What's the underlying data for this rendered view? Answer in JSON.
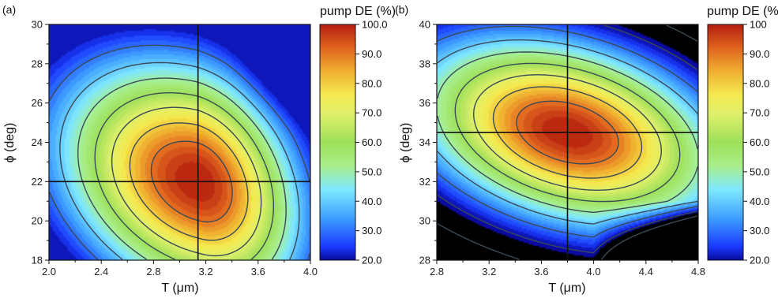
{
  "chart_data": [
    {
      "type": "heatmap",
      "panel_label": "(a)",
      "xlabel": "T (μm)",
      "ylabel": "ϕ (deg)",
      "xlim": [
        2.0,
        4.0
      ],
      "ylim": [
        18,
        30
      ],
      "xticks": [
        "2.0",
        "2.4",
        "2.8",
        "3.2",
        "3.6",
        "4.0"
      ],
      "yticks": [
        "18",
        "20",
        "22",
        "24",
        "26",
        "28",
        "30"
      ],
      "optimum": {
        "x": 3.14,
        "y": 22.0,
        "value": 100
      },
      "low_corner": {
        "x": 4.0,
        "y": 30,
        "value": 20
      },
      "colorbar": {
        "title": "pump DE (%)",
        "range": [
          20,
          100
        ],
        "tick_labels": [
          "100.0",
          "90.0",
          "80.0",
          "70.0",
          "60.0",
          "50.0",
          "40.0",
          "30.0",
          "20.0"
        ]
      }
    },
    {
      "type": "heatmap",
      "panel_label": "(b)",
      "xlabel": "T (μm)",
      "ylabel": "ϕ (deg)",
      "xlim": [
        2.8,
        4.8
      ],
      "ylim": [
        28,
        40
      ],
      "xticks": [
        "2.8",
        "3.2",
        "3.6",
        "4.0",
        "4.4",
        "4.8"
      ],
      "yticks": [
        "28",
        "30",
        "32",
        "34",
        "36",
        "38",
        "40"
      ],
      "optimum": {
        "x": 3.8,
        "y": 34.5,
        "value": 100
      },
      "low_corner": {
        "x": 4.8,
        "y": 28,
        "value": 10
      },
      "colorbar": {
        "title": "pump DE (%)",
        "range": [
          20,
          100
        ],
        "tick_labels": [
          "100",
          "90.0",
          "80.0",
          "70.0",
          "60.0",
          "50.0",
          "40.0",
          "30.0",
          "20.0"
        ]
      }
    }
  ]
}
